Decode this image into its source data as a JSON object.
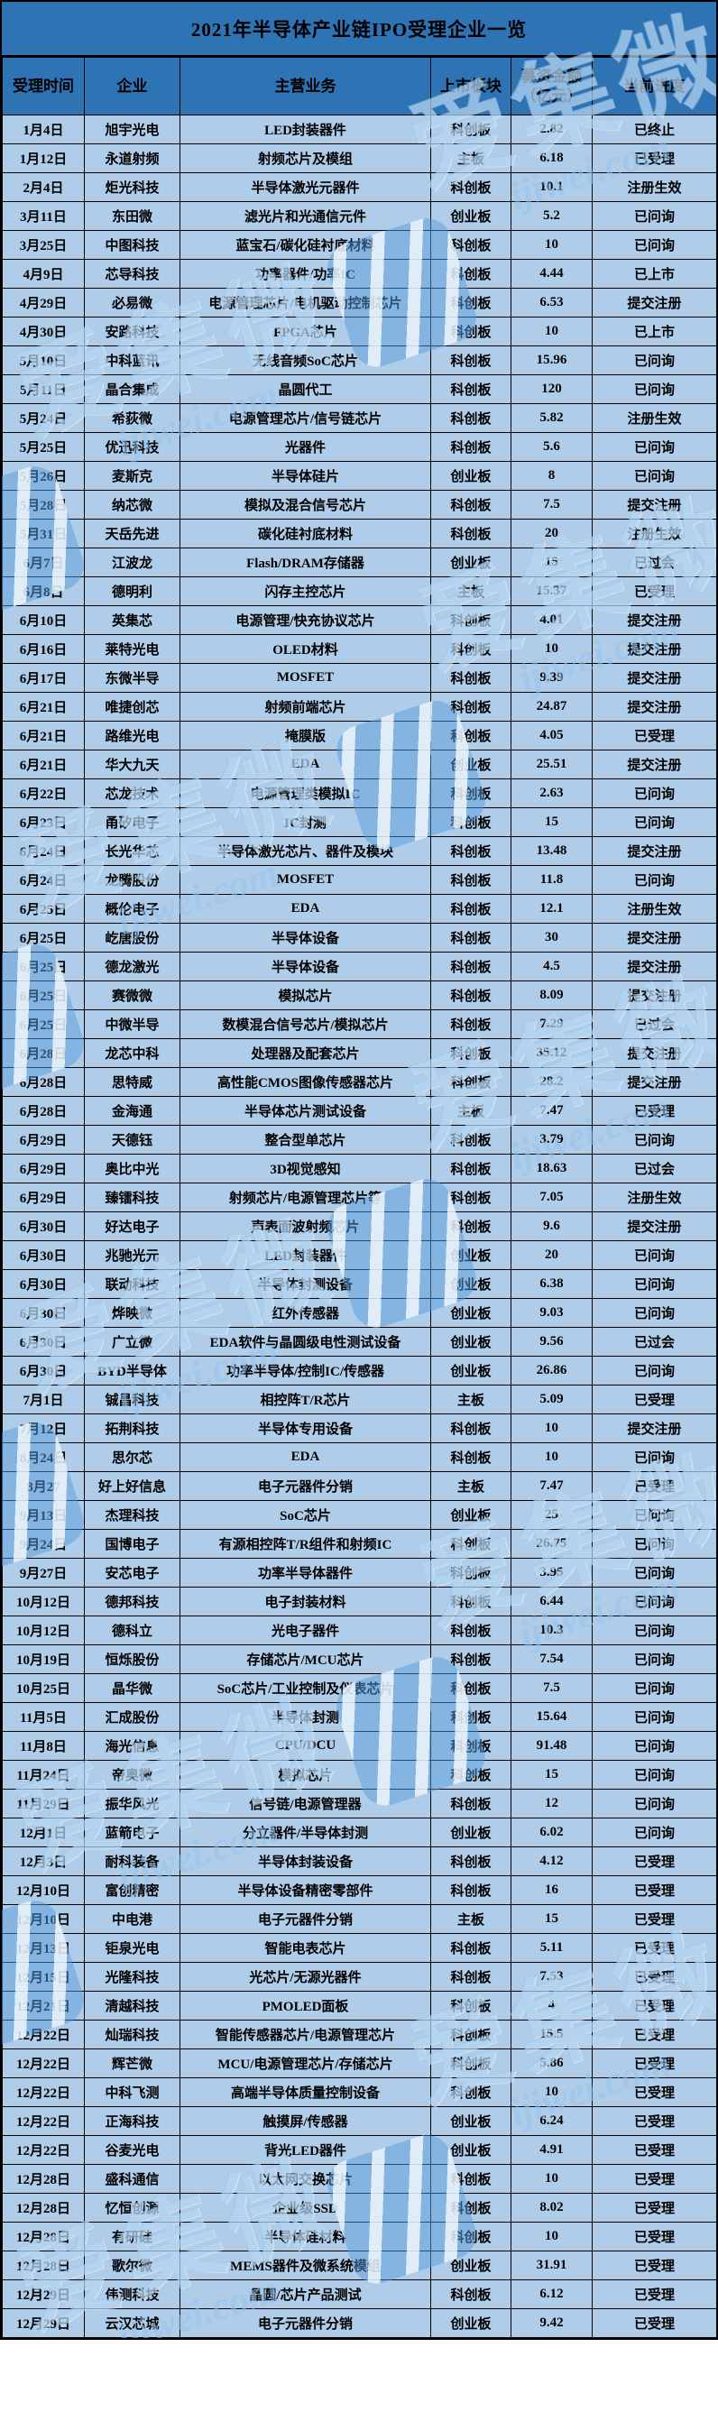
{
  "title": "2021年半导体产业链IPO受理企业一览",
  "columns": [
    "受理时间",
    "企业",
    "主营业务",
    "上市板块",
    "募资金额\n（亿元）",
    "当前进度"
  ],
  "watermark": {
    "brand": "爱集微",
    "domain": "ijiwei.com"
  },
  "colors": {
    "header_bg": "#2E74B5",
    "row_bg": "#AFCCE9",
    "border": "#000000",
    "watermark_blue": "#5A9BDC"
  },
  "rows": [
    [
      "1月4日",
      "旭宇光电",
      "LED封装器件",
      "科创板",
      "2.82",
      "已终止"
    ],
    [
      "1月12日",
      "永道射频",
      "射频芯片及模组",
      "主板",
      "6.18",
      "已受理"
    ],
    [
      "2月4日",
      "炬光科技",
      "半导体激光元器件",
      "科创板",
      "10.1",
      "注册生效"
    ],
    [
      "3月11日",
      "东田微",
      "滤光片和光通信元件",
      "创业板",
      "5.2",
      "已问询"
    ],
    [
      "3月25日",
      "中图科技",
      "蓝宝石/碳化硅衬底材料",
      "科创板",
      "10",
      "已问询"
    ],
    [
      "4月9日",
      "芯导科技",
      "功率器件/功率IC",
      "科创板",
      "4.44",
      "已上市"
    ],
    [
      "4月29日",
      "必易微",
      "电源管理芯片/电机驱动控制芯片",
      "科创板",
      "6.53",
      "提交注册"
    ],
    [
      "4月30日",
      "安路科技",
      "FPGA芯片",
      "科创板",
      "10",
      "已上市"
    ],
    [
      "5月10日",
      "中科蓝讯",
      "无线音频SoC芯片",
      "科创板",
      "15.96",
      "已问询"
    ],
    [
      "5月11日",
      "晶合集成",
      "晶圆代工",
      "科创板",
      "120",
      "已问询"
    ],
    [
      "5月24日",
      "希荻微",
      "电源管理芯片/信号链芯片",
      "科创板",
      "5.82",
      "注册生效"
    ],
    [
      "5月25日",
      "优迅科技",
      "光器件",
      "科创板",
      "5.6",
      "已问询"
    ],
    [
      "5月26日",
      "麦斯克",
      "半导体硅片",
      "创业板",
      "8",
      "已问询"
    ],
    [
      "5月28日",
      "纳芯微",
      "模拟及混合信号芯片",
      "科创板",
      "7.5",
      "提交注册"
    ],
    [
      "5月31日",
      "天岳先进",
      "碳化硅衬底材料",
      "科创板",
      "20",
      "注册生效"
    ],
    [
      "6月7日",
      "江波龙",
      "Flash/DRAM存储器",
      "创业板",
      "15",
      "已过会"
    ],
    [
      "6月8日",
      "德明利",
      "闪存主控芯片",
      "主板",
      "15.37",
      "已受理"
    ],
    [
      "6月10日",
      "英集芯",
      "电源管理/快充协议芯片",
      "科创板",
      "4.01",
      "提交注册"
    ],
    [
      "6月16日",
      "莱特光电",
      "OLED材料",
      "科创板",
      "10",
      "提交注册"
    ],
    [
      "6月17日",
      "东微半导",
      "MOSFET",
      "科创板",
      "9.39",
      "提交注册"
    ],
    [
      "6月21日",
      "唯捷创芯",
      "射频前端芯片",
      "科创板",
      "24.87",
      "提交注册"
    ],
    [
      "6月21日",
      "路维光电",
      "掩膜版",
      "科创板",
      "4.05",
      "已受理"
    ],
    [
      "6月21日",
      "华大九天",
      "EDA",
      "创业板",
      "25.51",
      "提交注册"
    ],
    [
      "6月22日",
      "芯龙技术",
      "电源管理类模拟IC",
      "科创板",
      "2.63",
      "已问询"
    ],
    [
      "6月23日",
      "甬矽电子",
      "IC封测",
      "科创板",
      "15",
      "已问询"
    ],
    [
      "6月24日",
      "长光华芯",
      "半导体激光芯片、器件及模块",
      "科创板",
      "13.48",
      "提交注册"
    ],
    [
      "6月24日",
      "龙腾股份",
      "MOSFET",
      "科创板",
      "11.8",
      "已问询"
    ],
    [
      "6月25日",
      "概伦电子",
      "EDA",
      "科创板",
      "12.1",
      "注册生效"
    ],
    [
      "6月25日",
      "屹唐股份",
      "半导体设备",
      "科创板",
      "30",
      "提交注册"
    ],
    [
      "6月25日",
      "德龙激光",
      "半导体设备",
      "科创板",
      "4.5",
      "提交注册"
    ],
    [
      "6月25日",
      "赛微微",
      "模拟芯片",
      "科创板",
      "8.09",
      "提交注册"
    ],
    [
      "6月25日",
      "中微半导",
      "数模混合信号芯片/模拟芯片",
      "科创板",
      "7.29",
      "已过会"
    ],
    [
      "6月28日",
      "龙芯中科",
      "处理器及配套芯片",
      "科创板",
      "35.12",
      "提交注册"
    ],
    [
      "6月28日",
      "思特威",
      "高性能CMOS图像传感器芯片",
      "科创板",
      "28.2",
      "提交注册"
    ],
    [
      "6月28日",
      "金海通",
      "半导体芯片测试设备",
      "主板",
      "7.47",
      "已受理"
    ],
    [
      "6月29日",
      "天德钰",
      "整合型单芯片",
      "科创板",
      "3.79",
      "已问询"
    ],
    [
      "6月29日",
      "奥比中光",
      "3D视觉感知",
      "科创板",
      "18.63",
      "已过会"
    ],
    [
      "6月29日",
      "臻镭科技",
      "射频芯片/电源管理芯片等",
      "科创板",
      "7.05",
      "注册生效"
    ],
    [
      "6月30日",
      "好达电子",
      "声表面波射频芯片",
      "科创板",
      "9.6",
      "提交注册"
    ],
    [
      "6月30日",
      "兆驰光元",
      "LED封装器件",
      "创业板",
      "20",
      "已问询"
    ],
    [
      "6月30日",
      "联动科技",
      "半导体封测设备",
      "创业板",
      "6.38",
      "已问询"
    ],
    [
      "6月30日",
      "烨映微",
      "红外传感器",
      "创业板",
      "9.03",
      "已问询"
    ],
    [
      "6月30日",
      "广立微",
      "EDA软件与晶圆级电性测试设备",
      "创业板",
      "9.56",
      "已过会"
    ],
    [
      "6月30日",
      "BYD半导体",
      "功率半导体/控制IC/传感器",
      "创业板",
      "26.86",
      "已问询"
    ],
    [
      "7月1日",
      "铖昌科技",
      "相控阵T/R芯片",
      "主板",
      "5.09",
      "已受理"
    ],
    [
      "7月12日",
      "拓荆科技",
      "半导体专用设备",
      "科创板",
      "10",
      "提交注册"
    ],
    [
      "8月24日",
      "思尔芯",
      "EDA",
      "科创板",
      "10",
      "已问询"
    ],
    [
      "8月27",
      "好上好信息",
      "电子元器件分销",
      "主板",
      "7.47",
      "已受理"
    ],
    [
      "9月13日",
      "杰理科技",
      "SoC芯片",
      "创业板",
      "25",
      "已问询"
    ],
    [
      "9月24日",
      "国博电子",
      "有源相控阵T/R组件和射频IC",
      "科创板",
      "26.75",
      "已问询"
    ],
    [
      "9月27日",
      "安芯电子",
      "功率半导体器件",
      "科创板",
      "3.95",
      "已问询"
    ],
    [
      "10月12日",
      "德邦科技",
      "电子封装材料",
      "科创板",
      "6.44",
      "已问询"
    ],
    [
      "10月12日",
      "德科立",
      "光电子器件",
      "科创板",
      "10.3",
      "已问询"
    ],
    [
      "10月19日",
      "恒烁股份",
      "存储芯片/MCU芯片",
      "科创板",
      "7.54",
      "已问询"
    ],
    [
      "10月25日",
      "晶华微",
      "SoC芯片/工业控制及仪表芯片",
      "科创板",
      "7.5",
      "已问询"
    ],
    [
      "11月5日",
      "汇成股份",
      "半导体封测",
      "科创板",
      "15.64",
      "已问询"
    ],
    [
      "11月8日",
      "海光信息",
      "CPU/DCU",
      "科创板",
      "91.48",
      "已问询"
    ],
    [
      "11月24日",
      "帝奥微",
      "模拟芯片",
      "科创板",
      "15",
      "已问询"
    ],
    [
      "11月29日",
      "振华风光",
      "信号链/电源管理器",
      "科创板",
      "12",
      "已问询"
    ],
    [
      "12月1日",
      "蓝箭电子",
      "分立器件/半导体封测",
      "创业板",
      "6.02",
      "已问询"
    ],
    [
      "12月3日",
      "耐科装备",
      "半导体封装设备",
      "科创板",
      "4.12",
      "已受理"
    ],
    [
      "12月10日",
      "富创精密",
      "半导体设备精密零部件",
      "科创板",
      "16",
      "已受理"
    ],
    [
      "12月10日",
      "中电港",
      "电子元器件分销",
      "主板",
      "15",
      "已受理"
    ],
    [
      "12月13日",
      "钜泉光电",
      "智能电表芯片",
      "科创板",
      "5.11",
      "已受理"
    ],
    [
      "12月15日",
      "光隆科技",
      "光芯片/无源光器件",
      "科创板",
      "7.53",
      "已受理"
    ],
    [
      "12月21日",
      "清越科技",
      "PMOLED面板",
      "科创板",
      "4",
      "已受理"
    ],
    [
      "12月22日",
      "灿瑞科技",
      "智能传感器芯片/电源管理芯片",
      "科创板",
      "15.5",
      "已受理"
    ],
    [
      "12月22日",
      "辉芒微",
      "MCU/电源管理芯片/存储芯片",
      "科创板",
      "5.86",
      "已受理"
    ],
    [
      "12月22日",
      "中科飞测",
      "高端半导体质量控制设备",
      "科创板",
      "10",
      "已受理"
    ],
    [
      "12月22日",
      "正海科技",
      "触摸屏/传感器",
      "创业板",
      "6.24",
      "已受理"
    ],
    [
      "12月22日",
      "谷麦光电",
      "背光LED器件",
      "创业板",
      "4.91",
      "已受理"
    ],
    [
      "12月28日",
      "盛科通信",
      "以太网交换芯片",
      "科创板",
      "10",
      "已受理"
    ],
    [
      "12月28日",
      "忆恒创源",
      "企业级SSD",
      "科创板",
      "8.02",
      "已受理"
    ],
    [
      "12月28日",
      "有研硅",
      "半导体硅材料",
      "科创板",
      "10",
      "已受理"
    ],
    [
      "12月28日",
      "歌尔微",
      "MEMS器件及微系统模组",
      "创业板",
      "31.91",
      "已受理"
    ],
    [
      "12月29日",
      "伟测科技",
      "晶圆/芯片产品测试",
      "科创板",
      "6.12",
      "已受理"
    ],
    [
      "12月29日",
      "云汉芯城",
      "电子元器件分销",
      "创业板",
      "9.42",
      "已受理"
    ]
  ]
}
